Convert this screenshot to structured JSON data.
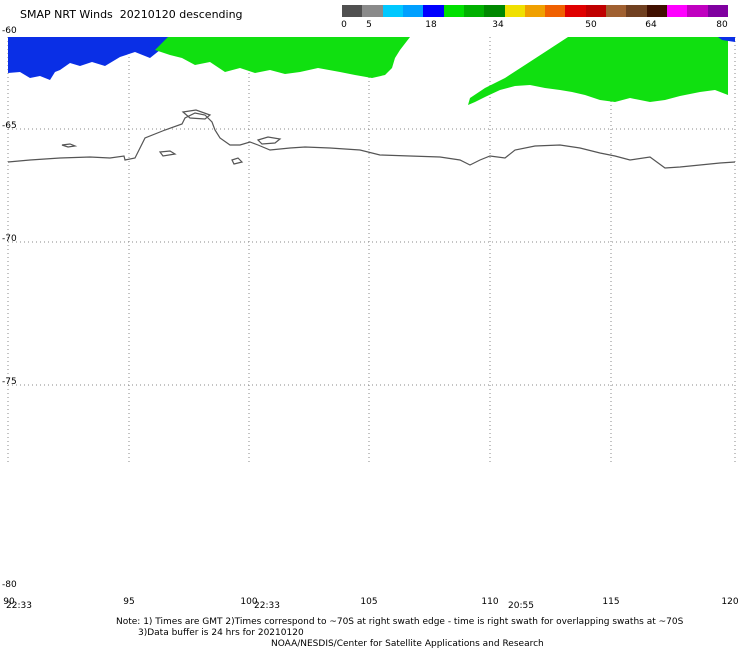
{
  "header": {
    "title": "SMAP NRT Winds  20210120 descending"
  },
  "colorbar": {
    "segments": [
      {
        "color": "#505050"
      },
      {
        "color": "#8a8a8a"
      },
      {
        "color": "#00c8ff"
      },
      {
        "color": "#00a0ff"
      },
      {
        "color": "#0000ff"
      },
      {
        "color": "#00e000"
      },
      {
        "color": "#00b000"
      },
      {
        "color": "#008800"
      },
      {
        "color": "#f0e000"
      },
      {
        "color": "#f0a000"
      },
      {
        "color": "#f06000"
      },
      {
        "color": "#e00000"
      },
      {
        "color": "#c00000"
      },
      {
        "color": "#a06030"
      },
      {
        "color": "#704020"
      },
      {
        "color": "#401000"
      },
      {
        "color": "#ff00ff"
      },
      {
        "color": "#c000c0"
      },
      {
        "color": "#8000a0"
      }
    ],
    "labels": [
      "0",
      "5",
      "18",
      "34",
      "50",
      "64",
      "80"
    ]
  },
  "axes": {
    "lat_labels": [
      "-60",
      "-65",
      "-70",
      "-75",
      "-80"
    ],
    "lon_labels": [
      "90",
      "95",
      "100",
      "105",
      "110",
      "115",
      "120"
    ],
    "time_labels": [
      "22:33",
      "22:33",
      "20:55"
    ]
  },
  "footer": {
    "note_line1": "Note: 1) Times are GMT 2)Times correspond to ~70S at right swath edge - time is right swath for overlapping swaths at ~70S",
    "note_line2": "3)Data buffer is 24 hrs for 20210120",
    "credit": "NOAA/NESDIS/Center for Satellite Applications and Research"
  },
  "colors": {
    "swath_blue": "#0a2fe6",
    "swath_green": "#10e010",
    "coast": "#555555",
    "grid": "#8a8a8a"
  }
}
